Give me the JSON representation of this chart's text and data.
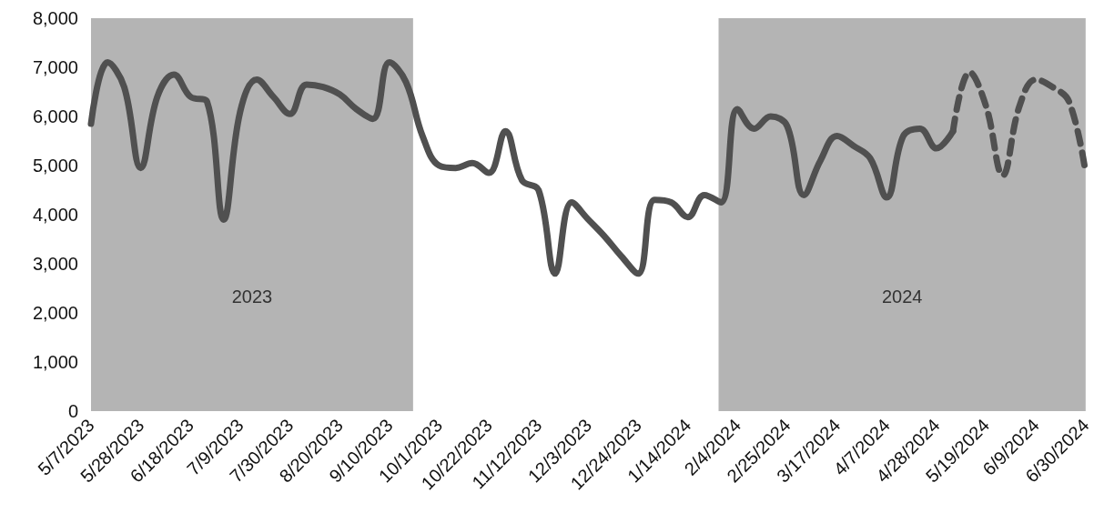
{
  "chart_data": {
    "type": "line",
    "x": [
      "2023-05-07",
      "2023-05-14",
      "2023-05-21",
      "2023-05-28",
      "2023-06-04",
      "2023-06-11",
      "2023-06-18",
      "2023-06-25",
      "2023-07-02",
      "2023-07-09",
      "2023-07-16",
      "2023-07-23",
      "2023-07-30",
      "2023-08-06",
      "2023-08-13",
      "2023-08-20",
      "2023-08-27",
      "2023-09-03",
      "2023-09-10",
      "2023-09-17",
      "2023-09-24",
      "2023-10-01",
      "2023-10-08",
      "2023-10-15",
      "2023-10-22",
      "2023-10-29",
      "2023-11-05",
      "2023-11-12",
      "2023-11-19",
      "2023-11-26",
      "2023-12-03",
      "2023-12-10",
      "2023-12-17",
      "2023-12-24",
      "2023-12-31",
      "2024-01-07",
      "2024-01-14",
      "2024-01-21",
      "2024-01-28",
      "2024-02-04",
      "2024-02-11",
      "2024-02-18",
      "2024-02-25",
      "2024-03-03",
      "2024-03-10",
      "2024-03-17",
      "2024-03-24",
      "2024-03-31",
      "2024-04-07",
      "2024-04-14",
      "2024-04-21",
      "2024-04-28",
      "2024-05-05",
      "2024-05-12",
      "2024-05-19",
      "2024-05-26",
      "2024-06-02",
      "2024-06-09",
      "2024-06-16",
      "2024-06-23",
      "2024-06-30"
    ],
    "series": [
      {
        "color": "#505050",
        "line_style": "solid",
        "values": [
          5850,
          7100,
          6600,
          4950,
          6400,
          6850,
          6400,
          6300,
          3900,
          6100,
          6750,
          6400,
          6050,
          6650,
          6600,
          6450,
          6150,
          5950,
          7100,
          6700,
          5600,
          5000,
          4950,
          5050,
          4850,
          5700,
          4700,
          4500,
          2800,
          4250,
          3900,
          3550,
          3150,
          2800,
          4300,
          4250,
          3950,
          4400,
          4250,
          6150,
          5750,
          6000,
          5800,
          4400,
          5100,
          5600,
          5400,
          5150,
          4350,
          5600,
          5750,
          5350,
          5700,
          null,
          null,
          null,
          null,
          null,
          null,
          null,
          null
        ]
      },
      {
        "color": "#505050",
        "line_style": "dashed",
        "values": [
          null,
          null,
          null,
          null,
          null,
          null,
          null,
          null,
          null,
          null,
          null,
          null,
          null,
          null,
          null,
          null,
          null,
          null,
          null,
          null,
          null,
          null,
          null,
          null,
          null,
          null,
          null,
          null,
          null,
          null,
          null,
          null,
          null,
          null,
          null,
          null,
          null,
          null,
          null,
          null,
          null,
          null,
          null,
          null,
          null,
          null,
          null,
          null,
          null,
          null,
          null,
          null,
          5700,
          6900,
          6200,
          4800,
          6200,
          6750,
          6600,
          6300,
          4850
        ]
      }
    ],
    "xlim": [
      "2023-05-07",
      "2024-06-30"
    ],
    "xticks": [
      {
        "value": "2023-05-07",
        "label": "5/7/2023"
      },
      {
        "value": "2023-05-28",
        "label": "5/28/2023"
      },
      {
        "value": "2023-06-18",
        "label": "6/18/2023"
      },
      {
        "value": "2023-07-09",
        "label": "7/9/2023"
      },
      {
        "value": "2023-07-30",
        "label": "7/30/2023"
      },
      {
        "value": "2023-08-20",
        "label": "8/20/2023"
      },
      {
        "value": "2023-09-10",
        "label": "9/10/2023"
      },
      {
        "value": "2023-10-01",
        "label": "10/1/2023"
      },
      {
        "value": "2023-10-22",
        "label": "10/22/2023"
      },
      {
        "value": "2023-11-12",
        "label": "11/12/2023"
      },
      {
        "value": "2023-12-03",
        "label": "12/3/2023"
      },
      {
        "value": "2023-12-24",
        "label": "12/24/2023"
      },
      {
        "value": "2024-01-14",
        "label": "1/14/2024"
      },
      {
        "value": "2024-02-04",
        "label": "2/4/2024"
      },
      {
        "value": "2024-02-25",
        "label": "2/25/2024"
      },
      {
        "value": "2024-03-17",
        "label": "3/17/2024"
      },
      {
        "value": "2024-04-07",
        "label": "4/7/2024"
      },
      {
        "value": "2024-04-28",
        "label": "4/28/2024"
      },
      {
        "value": "2024-05-19",
        "label": "5/19/2024"
      },
      {
        "value": "2024-06-09",
        "label": "6/9/2024"
      },
      {
        "value": "2024-06-30",
        "label": "6/30/2024"
      }
    ],
    "ylim": [
      0,
      8000
    ],
    "yticks": [
      0,
      {
        "value": 1000,
        "label": "1,000"
      },
      {
        "value": 2000,
        "label": "2,000"
      },
      {
        "value": 3000,
        "label": "3,000"
      },
      {
        "value": 4000,
        "label": "4,000"
      },
      {
        "value": 5000,
        "label": "5,000"
      },
      {
        "value": 6000,
        "label": "6,000"
      },
      {
        "value": 7000,
        "label": "7,000"
      },
      {
        "value": 8000,
        "label": "8,000"
      }
    ],
    "bands": [
      {
        "axis": "x",
        "from": "2023-05-07",
        "to": "2023-09-20",
        "label": "2023",
        "color": "#b4b4b4"
      },
      {
        "axis": "x",
        "from": "2024-01-27",
        "to": "2024-06-30",
        "label": "2024",
        "color": "#b4b4b4"
      }
    ],
    "grid": false,
    "marker": "none"
  }
}
